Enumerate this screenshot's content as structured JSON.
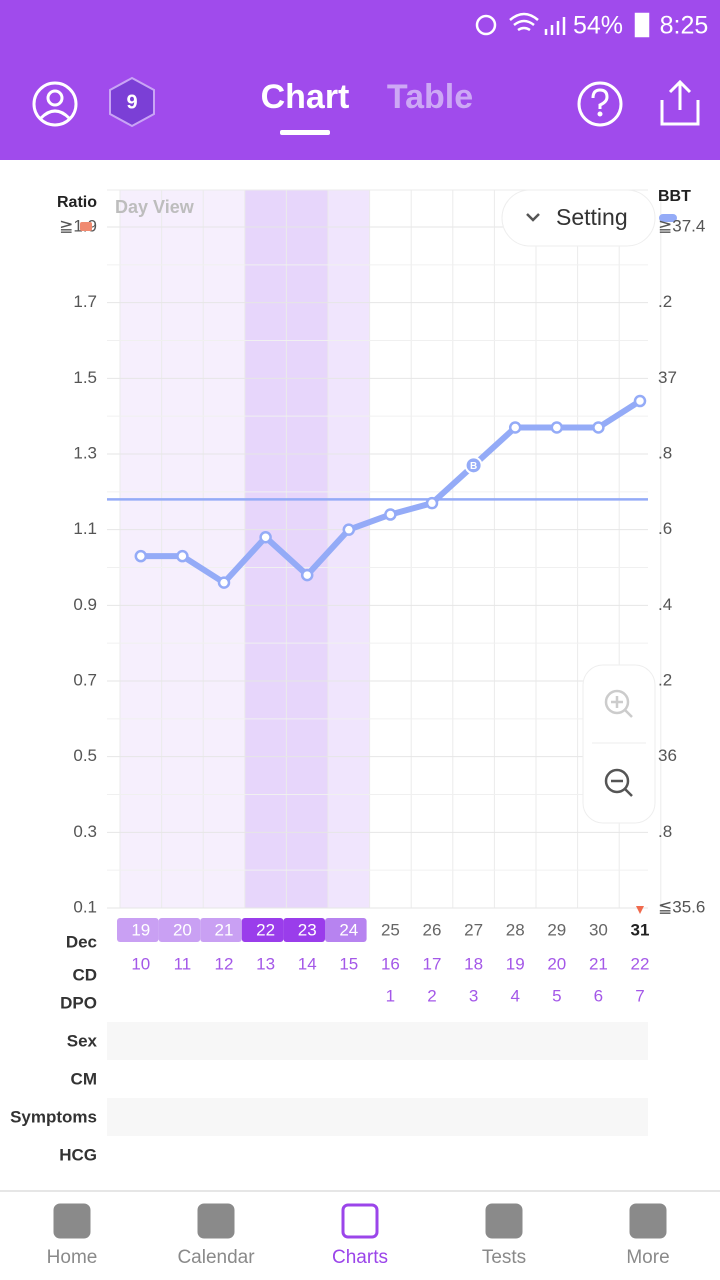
{
  "status_bar": {
    "battery": "54%",
    "time": "8:25"
  },
  "header": {
    "tabs": [
      "Chart",
      "Table"
    ],
    "badge": "9"
  },
  "chart_data": {
    "type": "line",
    "left_axis_title": "Ratio",
    "right_axis_title": "BBT",
    "view_label": "Day View",
    "settings_button": "Setting",
    "ylim": [
      0.1,
      1.9
    ],
    "yticks": [
      0.1,
      0.3,
      0.5,
      0.7,
      0.9,
      1.1,
      1.3,
      1.5,
      1.7,
      {
        "value": 1.9,
        "label": "≧1.9"
      }
    ],
    "y2lim": [
      35.6,
      37.4
    ],
    "y2ticks": [
      {
        "value": 35.6,
        "label": "≦35.6"
      },
      {
        "value": 35.8,
        "label": ".8"
      },
      36,
      {
        "value": 36.2,
        "label": ".2"
      },
      {
        "value": 36.4,
        "label": ".4"
      },
      {
        "value": 36.6,
        "label": ".6"
      },
      {
        "value": 36.8,
        "label": ".8"
      },
      37,
      {
        "value": 37.2,
        "label": ".2"
      },
      {
        "value": 37.4,
        "label": "≧37.4"
      }
    ],
    "grid": true,
    "month": "Dec",
    "categories": [
      "19",
      "20",
      "21",
      "22",
      "23",
      "24",
      "25",
      "26",
      "27",
      "28",
      "29",
      "30",
      "31"
    ],
    "shading": [
      "light",
      "light",
      "light",
      "dark",
      "dark",
      "medium",
      null,
      null,
      null,
      null,
      null,
      null,
      null
    ],
    "series": [
      {
        "color": "#94abf7",
        "axis": "y2",
        "values": [
          36.53,
          36.53,
          36.46,
          36.58,
          36.48,
          36.6,
          36.64,
          36.67,
          36.77,
          36.87,
          36.87,
          36.87,
          36.94
        ],
        "point_labels": [
          null,
          null,
          null,
          null,
          null,
          null,
          null,
          null,
          "B",
          null,
          null,
          null,
          null
        ]
      }
    ],
    "coverline": 36.68,
    "rows": {
      "labels": [
        "CD",
        "DPO",
        "Sex",
        "CM",
        "Symptoms",
        "HCG"
      ],
      "cd": [
        "10",
        "11",
        "12",
        "13",
        "14",
        "15",
        "16",
        "17",
        "18",
        "19",
        "20",
        "21",
        "22"
      ],
      "dpo": [
        null,
        null,
        null,
        null,
        null,
        null,
        "1",
        "2",
        "3",
        "4",
        "5",
        "6",
        "7"
      ]
    }
  },
  "nav": {
    "items": [
      "Home",
      "Calendar",
      "Charts",
      "Tests",
      "More"
    ],
    "active": 2
  }
}
